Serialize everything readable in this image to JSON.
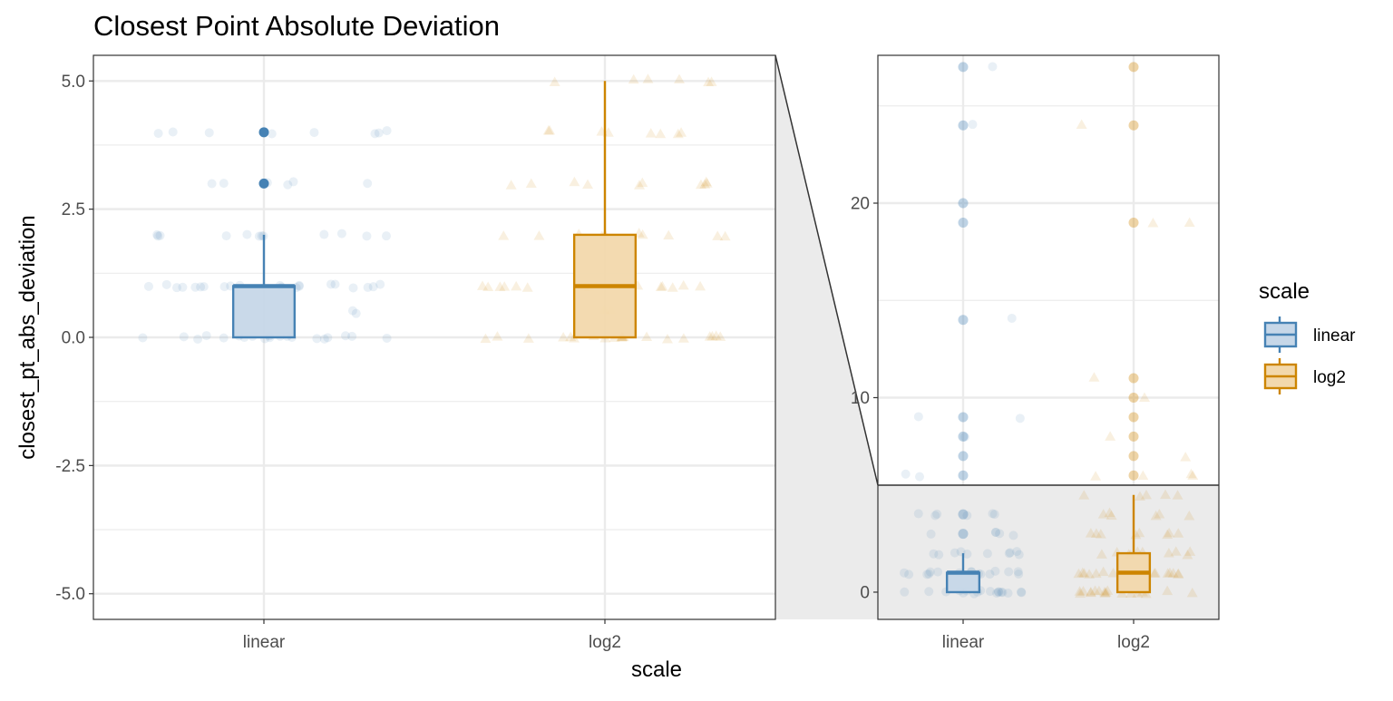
{
  "chart_data": [
    {
      "panel": "main",
      "type": "boxplot",
      "title": "Closest Point Absolute Deviation",
      "xlabel": "scale",
      "ylabel": "closest_pt_abs_deviation",
      "categories": [
        "linear",
        "log2"
      ],
      "ylim": [
        -5.5,
        5.5
      ],
      "yticks": [
        -5.0,
        -2.5,
        0.0,
        2.5,
        5.0
      ],
      "ytick_labels": [
        "-5.0",
        "-2.5",
        "0.0",
        "2.5",
        "5.0"
      ],
      "grid": true,
      "series": [
        {
          "name": "linear",
          "box": {
            "min": 0,
            "q1": 0,
            "median": 1,
            "q3": 1,
            "max": 2
          },
          "outliers": [
            3,
            4
          ],
          "jitter_values": [
            0,
            0,
            0,
            0,
            0,
            0,
            0,
            0,
            0,
            0,
            0,
            0,
            0,
            0,
            0,
            0,
            0,
            0,
            0,
            0,
            0.5,
            0.5,
            1,
            1,
            1,
            1,
            1,
            1,
            1,
            1,
            1,
            1,
            1,
            1,
            1,
            1,
            1,
            1,
            1,
            1,
            1,
            1,
            1,
            2,
            2,
            2,
            2,
            2,
            2,
            2,
            2,
            2,
            2,
            2,
            2,
            3,
            3,
            3,
            3,
            3,
            3,
            4,
            4,
            4,
            4,
            4,
            4,
            4,
            4
          ]
        },
        {
          "name": "log2",
          "box": {
            "min": 0,
            "q1": 0,
            "median": 1,
            "q3": 2,
            "max": 5
          },
          "outliers": [],
          "jitter_values": [
            0,
            0,
            0,
            0,
            0,
            0,
            0,
            0,
            0,
            0,
            0,
            0,
            0,
            0,
            0,
            0,
            0,
            0,
            0,
            0,
            0.5,
            0.5,
            1,
            1,
            1,
            1,
            1,
            1,
            1,
            1,
            1,
            1,
            1,
            1,
            1,
            1,
            1,
            1,
            1,
            1,
            1,
            1,
            2,
            2,
            2,
            2,
            2,
            2,
            2,
            2,
            2,
            2,
            3,
            3,
            3,
            3,
            3,
            3,
            3,
            3,
            3,
            3,
            4,
            4,
            4,
            4,
            4,
            4,
            4,
            4,
            5,
            5,
            5,
            5,
            5,
            5
          ]
        }
      ]
    },
    {
      "panel": "zoom",
      "type": "boxplot",
      "xlabel": "",
      "ylabel": "",
      "categories": [
        "linear",
        "log2"
      ],
      "ylim": [
        -1.4,
        27.6
      ],
      "yticks": [
        0,
        10,
        20
      ],
      "ytick_labels": [
        "0",
        "10",
        "20"
      ],
      "grid": true,
      "zoom_region_ymax": 5.5,
      "series": [
        {
          "name": "linear",
          "box": {
            "min": 0,
            "q1": 0,
            "median": 1,
            "q3": 1,
            "max": 2
          },
          "outliers": [
            3,
            4,
            6,
            7,
            8,
            9,
            14,
            19,
            20,
            24,
            27
          ],
          "jitter_values": [
            0,
            0,
            0,
            0,
            0,
            0,
            0,
            0,
            0,
            0,
            0,
            0,
            0,
            0,
            0,
            0,
            0,
            0,
            1,
            1,
            1,
            1,
            1,
            1,
            1,
            1,
            1,
            1,
            1,
            1,
            1,
            1,
            1,
            1,
            2,
            2,
            2,
            2,
            2,
            2,
            2,
            2,
            2,
            2,
            3,
            3,
            3,
            3,
            3,
            4,
            4,
            4,
            4,
            4,
            4,
            6,
            6,
            8,
            9,
            9,
            14,
            24,
            27
          ]
        },
        {
          "name": "log2",
          "box": {
            "min": 0,
            "q1": 0,
            "median": 1,
            "q3": 2,
            "max": 5
          },
          "outliers": [
            6,
            7,
            8,
            9,
            10,
            11,
            19,
            24,
            27
          ],
          "jitter_values": [
            0,
            0,
            0,
            0,
            0,
            0,
            0,
            0,
            0,
            0,
            0,
            0,
            0,
            0,
            0,
            0,
            0,
            0,
            1,
            1,
            1,
            1,
            1,
            1,
            1,
            1,
            1,
            1,
            1,
            1,
            1,
            1,
            1,
            1,
            2,
            2,
            2,
            2,
            2,
            2,
            2,
            2,
            2,
            2,
            3,
            3,
            3,
            3,
            3,
            3,
            3,
            3,
            4,
            4,
            4,
            4,
            4,
            4,
            5,
            5,
            5,
            5,
            5,
            6,
            6,
            6,
            6,
            7,
            8,
            10,
            11,
            19,
            19,
            24
          ]
        }
      ]
    }
  ],
  "legend": {
    "title": "scale",
    "placement": "right",
    "items": [
      {
        "label": "linear",
        "color": "#4682B4",
        "fill": "#C6D7E8"
      },
      {
        "label": "log2",
        "color": "#CD8500",
        "fill": "#F2D8AC"
      }
    ]
  },
  "colors": {
    "linear": "#4682B4",
    "log2": "#CD8500",
    "grid": "#EBEBEB",
    "zoom_region": "#EBEBEB",
    "axis_text": "#4D4D4D"
  }
}
